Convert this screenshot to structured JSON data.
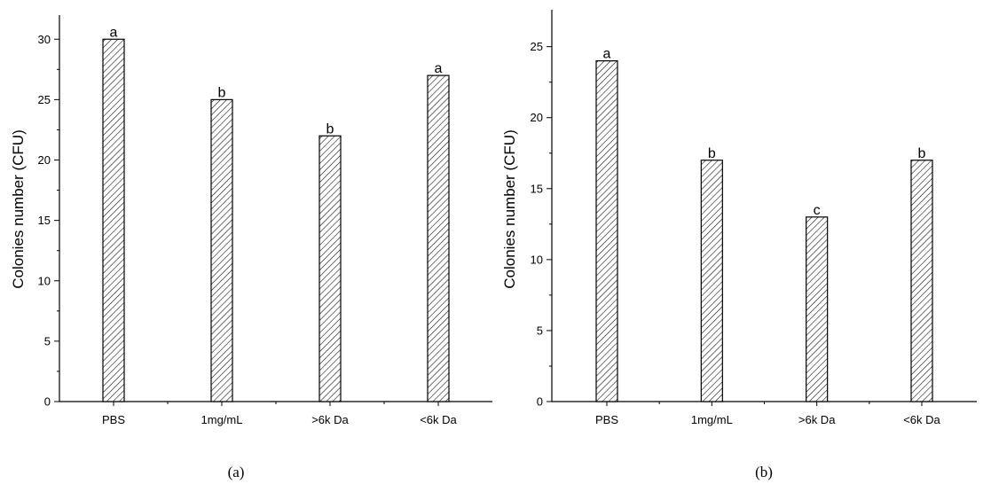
{
  "chart_data": [
    {
      "type": "bar",
      "panel_caption": "(a)",
      "categories": [
        "PBS",
        "1mg/mL",
        ">6k Da",
        "<6k Da"
      ],
      "values": [
        30,
        25,
        22,
        27
      ],
      "significance_letters": [
        "a",
        "b",
        "b",
        "a"
      ],
      "xlabel": "",
      "ylabel": "Colonies number (CFU)",
      "ylim": [
        0,
        32
      ],
      "yticks": [
        0,
        5,
        10,
        15,
        20,
        25,
        30
      ],
      "bar_pattern": "diagonal-hatch",
      "grid": false
    },
    {
      "type": "bar",
      "panel_caption": "(b)",
      "categories": [
        "PBS",
        "1mg/mL",
        ">6k Da",
        "<6k Da"
      ],
      "values": [
        24,
        17,
        13,
        17
      ],
      "significance_letters": [
        "a",
        "b",
        "c",
        "b"
      ],
      "xlabel": "",
      "ylabel": "Colonies number (CFU)",
      "ylim": [
        0,
        27.6
      ],
      "yticks": [
        0,
        5,
        10,
        15,
        20,
        25
      ],
      "bar_pattern": "diagonal-hatch",
      "grid": false
    }
  ],
  "colors": {
    "bar_fill": "#ffffff",
    "hatch": "#000000",
    "axis": "#000000"
  }
}
